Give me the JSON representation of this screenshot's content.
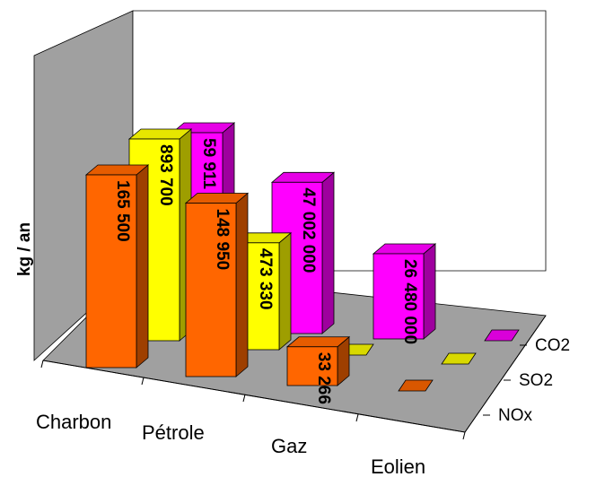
{
  "chart_data": {
    "type": "bar",
    "categories": [
      "Charbon",
      "Pétrole",
      "Gaz",
      "Eolien"
    ],
    "ylabel": "kg / an",
    "series": [
      {
        "name": "NOx",
        "values": [
          165500,
          148950,
          33266,
          0
        ],
        "labels": [
          "165 500",
          "148 950",
          "33 266",
          ""
        ],
        "color": "#ff6600"
      },
      {
        "name": "SO2",
        "values": [
          893700,
          473330,
          0,
          0
        ],
        "labels": [
          "893 700",
          "473 330",
          "",
          ""
        ],
        "color": "#ffff00"
      },
      {
        "name": "CO2",
        "values": [
          59911000,
          47002000,
          26480000,
          0
        ],
        "labels": [
          "59 911 000",
          "47 002 000",
          "26 480 000",
          ""
        ],
        "color": "#ff00ff"
      }
    ],
    "y_scale": "not linear (3D depth chart, each series row drawn at its own scale)",
    "grid": false,
    "legend": "series labels on depth axis (right side)"
  }
}
